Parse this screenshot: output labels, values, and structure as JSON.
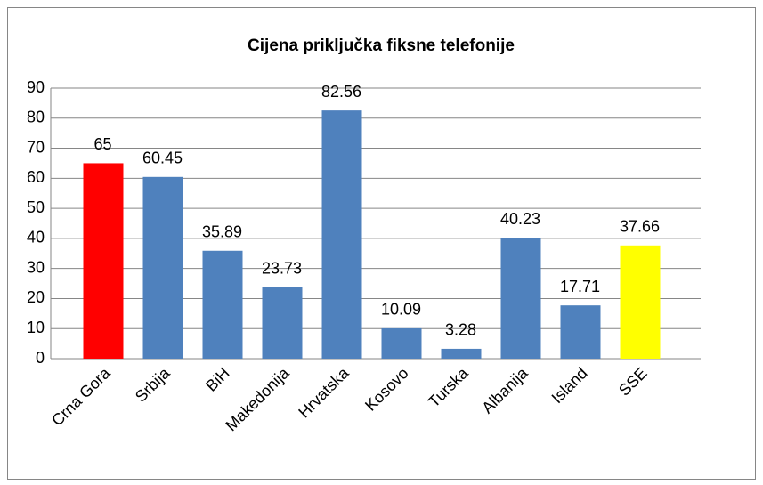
{
  "chart_data": {
    "type": "bar",
    "title": "Cijena priključka fiksne telefonije",
    "categories": [
      "Crna Gora",
      "Srbija",
      "BiH",
      "Makedonija",
      "Hrvatska",
      "Kosovo",
      "Turska",
      "Albanija",
      "Island",
      "SSE"
    ],
    "values": [
      65,
      60.45,
      35.89,
      23.73,
      82.56,
      10.09,
      3.28,
      40.23,
      17.71,
      37.66
    ],
    "colors": [
      "#ff0000",
      "#4f81bd",
      "#4f81bd",
      "#4f81bd",
      "#4f81bd",
      "#4f81bd",
      "#4f81bd",
      "#4f81bd",
      "#4f81bd",
      "#ffff00"
    ],
    "ylim": [
      0,
      90
    ],
    "yticks": [
      0,
      10,
      20,
      30,
      40,
      50,
      60,
      70,
      80,
      90
    ],
    "grid": true
  }
}
